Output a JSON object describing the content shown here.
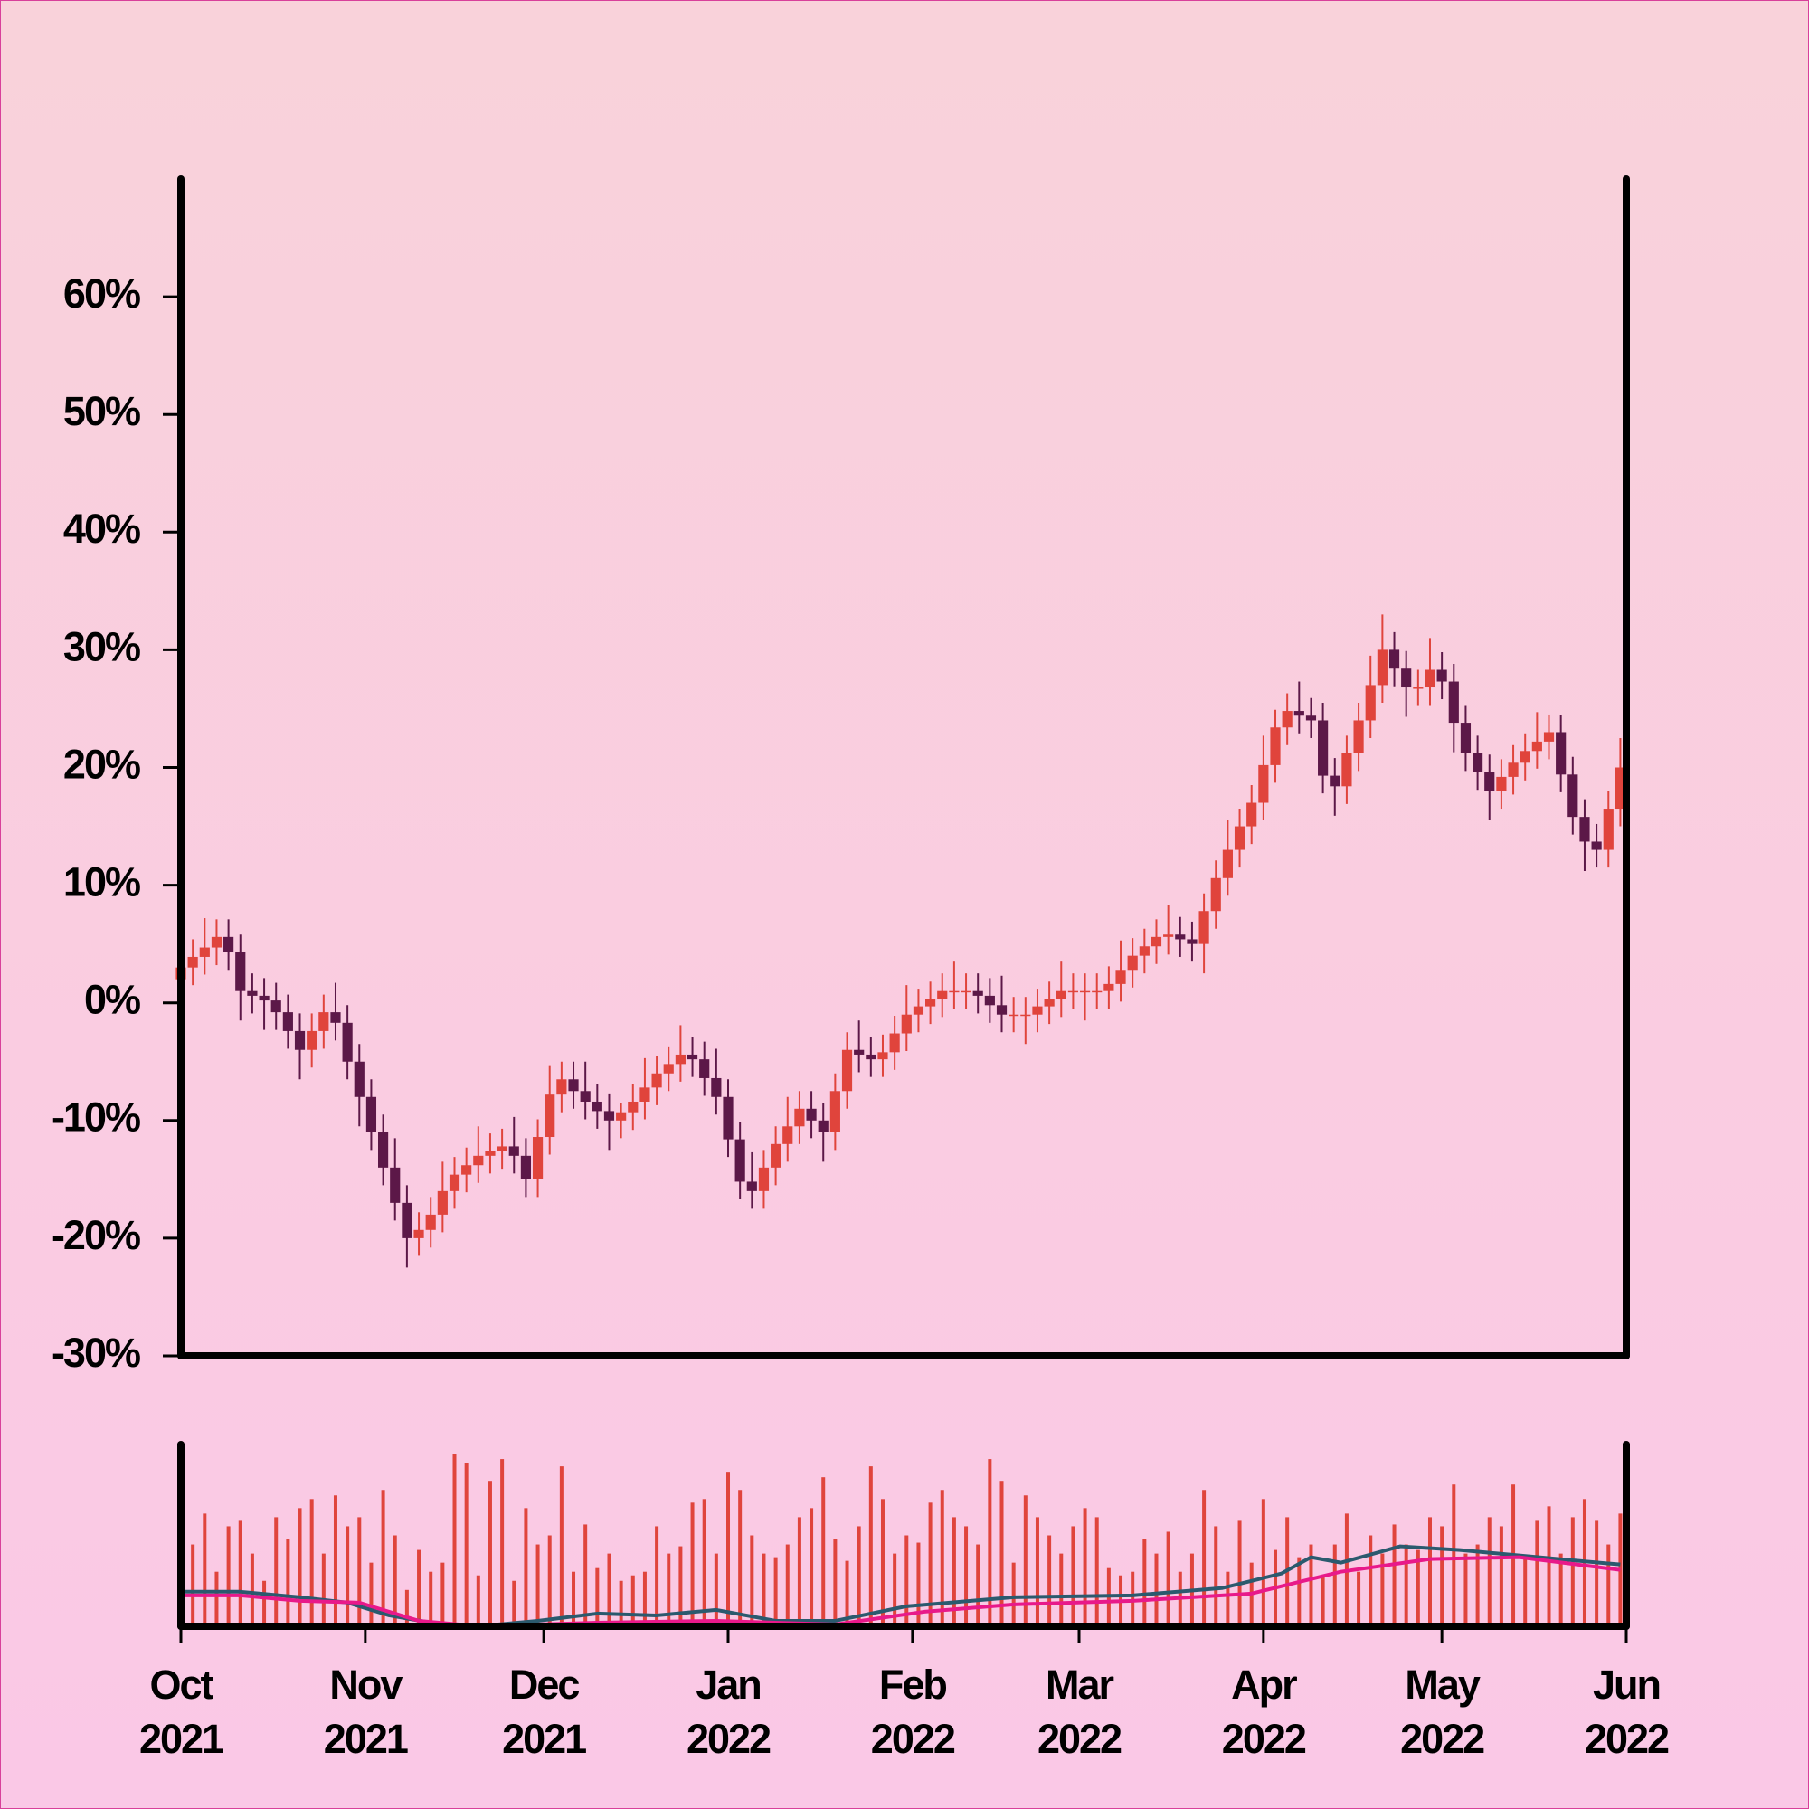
{
  "chart_data": {
    "type": "candlestick",
    "x": [
      0,
      2,
      4,
      6,
      8,
      10,
      12,
      14,
      16,
      18,
      20,
      22,
      24,
      26,
      28,
      30,
      32,
      34,
      36,
      38,
      40,
      42,
      44,
      46,
      48,
      50,
      52,
      54,
      56,
      58,
      60,
      62,
      64,
      66,
      68,
      70,
      72,
      74,
      76,
      78,
      80,
      82,
      84,
      86,
      88,
      90,
      92,
      94,
      96,
      98,
      100,
      102,
      104,
      106,
      108,
      110,
      112,
      114,
      116,
      118,
      120,
      122,
      124,
      126,
      128,
      130,
      132,
      134,
      136,
      138,
      140,
      142,
      144,
      146,
      148,
      150,
      152,
      154,
      156,
      158,
      160,
      162,
      164,
      166,
      168,
      170,
      172,
      174,
      176,
      178,
      180,
      182,
      184,
      186,
      188,
      190,
      192,
      194,
      196,
      198,
      200,
      202,
      204,
      206,
      208,
      210,
      212,
      214,
      216,
      218,
      220,
      222,
      224,
      226,
      228,
      230,
      232,
      234,
      236,
      238,
      240,
      242
    ],
    "open": [
      2,
      3,
      3.9,
      4.7,
      5.6,
      4.3,
      1,
      0.6,
      0.2,
      -0.8,
      -2.4,
      -4,
      -2.4,
      -0.8,
      -1.7,
      -5,
      -8,
      -11,
      -14,
      -17,
      -20,
      -19.3,
      -18,
      -16,
      -14.6,
      -13.8,
      -13,
      -12.6,
      -12.2,
      -13,
      -15,
      -11.4,
      -7.8,
      -6.5,
      -7.5,
      -8.4,
      -9.2,
      -10,
      -9.3,
      -8.4,
      -7.2,
      -6,
      -5.2,
      -4.4,
      -4.8,
      -6.4,
      -8,
      -11.6,
      -15.2,
      -16,
      -14,
      -12,
      -10.5,
      -9,
      -10,
      -11,
      -7.5,
      -4,
      -4.4,
      -4.8,
      -4.2,
      -2.6,
      -1,
      -0.3,
      0.3,
      1,
      1,
      1,
      0.6,
      -0.2,
      -1,
      -1,
      -1,
      -0.3,
      0.3,
      1,
      1,
      1,
      1,
      1.6,
      2.8,
      4,
      4.8,
      5.6,
      5.8,
      5.4,
      5,
      7.8,
      10.6,
      13,
      15,
      17,
      20.2,
      23.4,
      24.8,
      24.4,
      24,
      19.3,
      18.4,
      21.2,
      24,
      27,
      30,
      28.4,
      26.8,
      26.8,
      28.3,
      27.3,
      23.8,
      21.2,
      19.6,
      18,
      19.2,
      20.4,
      21.4,
      22.2,
      23,
      19.4,
      15.8,
      13.7,
      13,
      16.5
    ],
    "high": [
      4.5,
      5.4,
      7.2,
      7.1,
      7.1,
      5.8,
      2.5,
      2.1,
      1.7,
      0.7,
      -0.9,
      -0.9,
      0.7,
      1.7,
      -0.2,
      -3.5,
      -6.5,
      -9.5,
      -11.5,
      -15.5,
      -17.8,
      -16.5,
      -13.5,
      -13.1,
      -12.3,
      -10.5,
      -11.1,
      -10.7,
      -9.7,
      -11.5,
      -9.9,
      -5.3,
      -5,
      -5,
      -5,
      -6.9,
      -7.7,
      -8.5,
      -6.9,
      -4.7,
      -4.5,
      -3.7,
      -1.9,
      -2.9,
      -3.3,
      -3.9,
      -6.5,
      -10.1,
      -12.7,
      -12.5,
      -10.5,
      -8,
      -7.5,
      -7.5,
      -8.5,
      -6,
      -2.5,
      -1.5,
      -2.9,
      -2.7,
      -1.1,
      1.5,
      1.2,
      1.8,
      2.5,
      3.5,
      2.5,
      2.5,
      2.1,
      2.3,
      0.5,
      0.5,
      1.2,
      1.8,
      3.5,
      2.5,
      2.5,
      2.5,
      3.1,
      5.3,
      5.5,
      6.3,
      7.1,
      8.3,
      7.3,
      6.9,
      9.3,
      12.1,
      15.5,
      16.5,
      18.5,
      22.7,
      24.9,
      26.3,
      27.3,
      25.9,
      25.5,
      20.8,
      22.7,
      25.5,
      29.5,
      33,
      31.5,
      29.9,
      28.3,
      31,
      29.8,
      28.8,
      25.3,
      22.7,
      21.1,
      20.7,
      21.9,
      22.9,
      24.7,
      24.5,
      24.5,
      20.9,
      17.3,
      15.2,
      18,
      22.5
    ],
    "low": [
      0.5,
      1.5,
      2.4,
      3.2,
      2.8,
      -1.5,
      -0.9,
      -2.3,
      -2.3,
      -3.9,
      -6.5,
      -5.5,
      -3.9,
      -3.2,
      -6.5,
      -10.5,
      -12.5,
      -15.5,
      -18.5,
      -22.5,
      -21.5,
      -20.8,
      -19.5,
      -17.5,
      -16.1,
      -15.3,
      -14.5,
      -14.1,
      -14.5,
      -16.5,
      -16.5,
      -12.9,
      -9.3,
      -9,
      -9.9,
      -10.7,
      -12.5,
      -11.5,
      -10.8,
      -9.9,
      -8.7,
      -7.5,
      -6.7,
      -6.3,
      -7.9,
      -9.5,
      -13.1,
      -16.7,
      -17.5,
      -17.5,
      -15.5,
      -13.5,
      -12,
      -11.5,
      -13.5,
      -12.5,
      -9,
      -5.9,
      -6.3,
      -6.3,
      -5.7,
      -4.1,
      -2.5,
      -1.8,
      -1.2,
      -0.5,
      -0.5,
      -0.9,
      -1.7,
      -2.5,
      -2.5,
      -3.5,
      -2.5,
      -1.8,
      -1.2,
      -0.5,
      -1.5,
      -0.5,
      -0.5,
      0.1,
      1.3,
      2.5,
      3.3,
      4.1,
      3.9,
      3.5,
      2.5,
      6.3,
      9.1,
      11.5,
      13.5,
      15.5,
      18.7,
      21.9,
      22.9,
      22.5,
      17.8,
      15.9,
      16.9,
      19.7,
      22.5,
      25.5,
      26.9,
      24.3,
      25.3,
      25.3,
      25.8,
      21.3,
      19.7,
      18.1,
      15.5,
      16.5,
      17.7,
      18.9,
      19.9,
      20.7,
      17.9,
      14.3,
      11.2,
      11.5,
      11.5,
      15
    ],
    "close": [
      3,
      3.9,
      4.7,
      5.6,
      4.3,
      1,
      0.6,
      0.2,
      -0.8,
      -2.4,
      -4,
      -2.4,
      -0.8,
      -1.7,
      -5,
      -8,
      -11,
      -14,
      -17,
      -20,
      -19.3,
      -18,
      -16,
      -14.6,
      -13.8,
      -13,
      -12.6,
      -12.2,
      -13,
      -15,
      -11.4,
      -7.8,
      -6.5,
      -7.5,
      -8.4,
      -9.2,
      -10,
      -9.3,
      -8.4,
      -7.2,
      -6,
      -5.2,
      -4.4,
      -4.8,
      -6.4,
      -8,
      -11.6,
      -15.2,
      -16,
      -14,
      -12,
      -10.5,
      -9,
      -10,
      -11,
      -7.5,
      -4,
      -4.4,
      -4.8,
      -4.2,
      -2.6,
      -1,
      -0.3,
      0.3,
      1,
      1,
      1,
      0.6,
      -0.2,
      -1,
      -1,
      -1,
      -0.3,
      0.3,
      1,
      1,
      1,
      1,
      1.6,
      2.8,
      4,
      4.8,
      5.6,
      5.8,
      5.4,
      5,
      7.8,
      10.6,
      13,
      15,
      17,
      20.2,
      23.4,
      24.8,
      24.4,
      24,
      19.3,
      18.4,
      21.2,
      24,
      27,
      30,
      28.4,
      26.8,
      26.8,
      28.3,
      27.3,
      23.8,
      21.2,
      19.6,
      18,
      19.2,
      20.4,
      21.4,
      22.2,
      23,
      19.4,
      15.8,
      13.7,
      13,
      16.5,
      20
    ],
    "up_color": "#e0443c",
    "down_color": "#5c1848",
    "xlim": [
      0,
      243
    ],
    "xticks": [
      {
        "value": 0,
        "label": [
          "Oct",
          "2021"
        ]
      },
      {
        "value": 31,
        "label": [
          "Nov",
          "2021"
        ]
      },
      {
        "value": 61,
        "label": [
          "Dec",
          "2021"
        ]
      },
      {
        "value": 92,
        "label": [
          "Jan",
          "2022"
        ]
      },
      {
        "value": 123,
        "label": [
          "Feb",
          "2022"
        ]
      },
      {
        "value": 151,
        "label": [
          "Mar",
          "2022"
        ]
      },
      {
        "value": 182,
        "label": [
          "Apr",
          "2022"
        ]
      },
      {
        "value": 212,
        "label": [
          "May",
          "2022"
        ]
      },
      {
        "value": 243,
        "label": [
          "Jun",
          "2022"
        ]
      }
    ],
    "ylim": [
      -30,
      70
    ],
    "yticks": [
      {
        "value": -30,
        "label": "-30%"
      },
      {
        "value": -20,
        "label": "-20%"
      },
      {
        "value": -10,
        "label": "-10%"
      },
      {
        "value": 0,
        "label": "0%"
      },
      {
        "value": 10,
        "label": "10%"
      },
      {
        "value": 20,
        "label": "20%"
      },
      {
        "value": 30,
        "label": "30%"
      },
      {
        "value": 40,
        "label": "40%"
      },
      {
        "value": 50,
        "label": "50%"
      },
      {
        "value": 60,
        "label": "60%"
      }
    ],
    "volume": {
      "color": "#e0443c",
      "ylim": [
        0,
        100
      ],
      "values": [
        20,
        45,
        62,
        30,
        55,
        58,
        40,
        25,
        60,
        48,
        65,
        70,
        40,
        72,
        55,
        60,
        35,
        75,
        50,
        20,
        42,
        30,
        35,
        95,
        90,
        28,
        80,
        92,
        25,
        65,
        45,
        50,
        88,
        30,
        56,
        32,
        40,
        25,
        28,
        30,
        55,
        40,
        44,
        68,
        70,
        40,
        85,
        75,
        50,
        40,
        38,
        45,
        60,
        65,
        82,
        48,
        36,
        55,
        88,
        70,
        40,
        50,
        46,
        68,
        75,
        60,
        55,
        45,
        92,
        80,
        35,
        72,
        60,
        50,
        40,
        55,
        65,
        60,
        32,
        28,
        30,
        48,
        40,
        52,
        30,
        40,
        75,
        55,
        30,
        58,
        35,
        70,
        42,
        60,
        38,
        45,
        28,
        45,
        62,
        30,
        50,
        40,
        56,
        45,
        42,
        60,
        55,
        78,
        40,
        45,
        60,
        55,
        78,
        38,
        58,
        66,
        40,
        60,
        70,
        58,
        45,
        62
      ]
    },
    "lines": [
      {
        "color": "#2b5a6e",
        "x": [
          0,
          10,
          20,
          28,
          35,
          42,
          50,
          60,
          70,
          80,
          90,
          100,
          110,
          122,
          140,
          160,
          175,
          185,
          190,
          195,
          205,
          215,
          225,
          235,
          242
        ],
        "values": [
          19,
          19,
          16,
          13,
          6,
          2,
          0,
          3,
          7,
          6,
          9,
          3,
          3,
          11,
          16,
          17,
          21,
          29,
          38,
          35,
          44,
          42,
          39,
          36,
          34
        ]
      },
      {
        "color": "#e8198a",
        "x": [
          0,
          10,
          20,
          30,
          40,
          50,
          60,
          70,
          90,
          110,
          125,
          140,
          160,
          180,
          195,
          210,
          225,
          242
        ],
        "values": [
          17,
          17,
          14,
          13,
          3,
          0,
          1,
          2,
          3,
          1,
          8,
          12,
          14,
          18,
          30,
          37,
          38,
          31
        ]
      }
    ]
  }
}
